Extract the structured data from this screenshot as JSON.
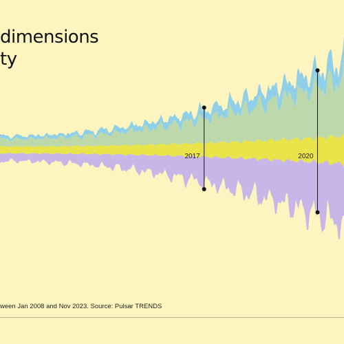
{
  "title": {
    "line1": "dimensions",
    "line2": "ty"
  },
  "footnote": "ween Jan 2008 and Nov 2023. Source: Pulsar TRENDS",
  "colors": {
    "background": "#fdf4bf",
    "marker": "#111111"
  },
  "chart_data": {
    "type": "area",
    "layout": "streamgraph",
    "x_unit": "year",
    "x_start": 2008.0,
    "x_end": 2023.83,
    "legend": "none",
    "grid": false,
    "series": [
      {
        "color": "#8fd0e8",
        "side": "upper",
        "order": 2
      },
      {
        "color": "#bdd8aa",
        "side": "upper",
        "order": 1
      },
      {
        "color": "#e8e44a",
        "side": "center",
        "order": 0
      },
      {
        "color": "#c9b6e8",
        "side": "lower",
        "order": 1
      }
    ],
    "annotations": [
      {
        "label": "2017",
        "x": 2017
      },
      {
        "label": "2020",
        "x": 2020
      }
    ]
  }
}
